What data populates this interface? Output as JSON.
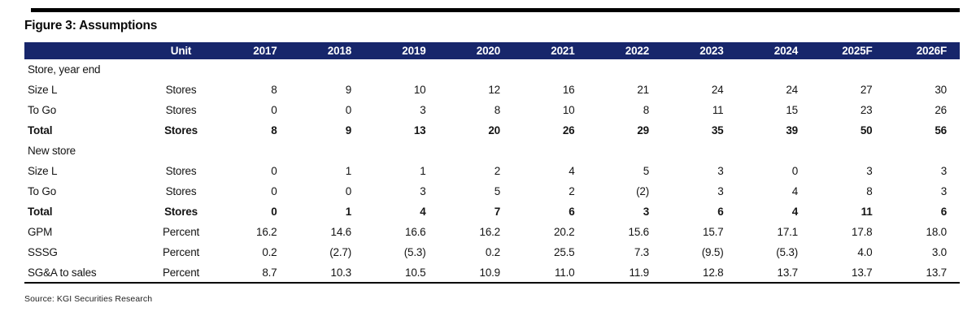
{
  "figure": {
    "title": "Figure 3: Assumptions",
    "source": "Source: KGI Securities Research"
  },
  "colors": {
    "header_bg": "#17266b",
    "header_text": "#ffffff",
    "rule": "#000000"
  },
  "chart_data": {
    "type": "table",
    "columns": [
      "",
      "Unit",
      "2017",
      "2018",
      "2019",
      "2020",
      "2021",
      "2022",
      "2023",
      "2024",
      "2025F",
      "2026F"
    ],
    "rows": [
      {
        "label": "Store, year end",
        "unit": "",
        "values": [
          "",
          "",
          "",
          "",
          "",
          "",
          "",
          "",
          "",
          ""
        ],
        "style": "section"
      },
      {
        "label": "Size L",
        "unit": "Stores",
        "values": [
          "8",
          "9",
          "10",
          "12",
          "16",
          "21",
          "24",
          "24",
          "27",
          "30"
        ],
        "style": "data"
      },
      {
        "label": "To Go",
        "unit": "Stores",
        "values": [
          "0",
          "0",
          "3",
          "8",
          "10",
          "8",
          "11",
          "15",
          "23",
          "26"
        ],
        "style": "data"
      },
      {
        "label": "Total",
        "unit": "Stores",
        "values": [
          "8",
          "9",
          "13",
          "20",
          "26",
          "29",
          "35",
          "39",
          "50",
          "56"
        ],
        "style": "total"
      },
      {
        "label": "New store",
        "unit": "",
        "values": [
          "",
          "",
          "",
          "",
          "",
          "",
          "",
          "",
          "",
          ""
        ],
        "style": "section"
      },
      {
        "label": "Size L",
        "unit": "Stores",
        "values": [
          "0",
          "1",
          "1",
          "2",
          "4",
          "5",
          "3",
          "0",
          "3",
          "3"
        ],
        "style": "data"
      },
      {
        "label": "To Go",
        "unit": "Stores",
        "values": [
          "0",
          "0",
          "3",
          "5",
          "2",
          "(2)",
          "3",
          "4",
          "8",
          "3"
        ],
        "style": "data"
      },
      {
        "label": "Total",
        "unit": "Stores",
        "values": [
          "0",
          "1",
          "4",
          "7",
          "6",
          "3",
          "6",
          "4",
          "11",
          "6"
        ],
        "style": "total"
      },
      {
        "label": "GPM",
        "unit": "Percent",
        "values": [
          "16.2",
          "14.6",
          "16.6",
          "16.2",
          "20.2",
          "15.6",
          "15.7",
          "17.1",
          "17.8",
          "18.0"
        ],
        "style": "data"
      },
      {
        "label": "SSSG",
        "unit": "Percent",
        "values": [
          "0.2",
          "(2.7)",
          "(5.3)",
          "0.2",
          "25.5",
          "7.3",
          "(9.5)",
          "(5.3)",
          "4.0",
          "3.0"
        ],
        "style": "data"
      },
      {
        "label": "SG&A to sales",
        "unit": "Percent",
        "values": [
          "8.7",
          "10.3",
          "10.5",
          "10.9",
          "11.0",
          "11.9",
          "12.8",
          "13.7",
          "13.7",
          "13.7"
        ],
        "style": "data"
      }
    ]
  }
}
